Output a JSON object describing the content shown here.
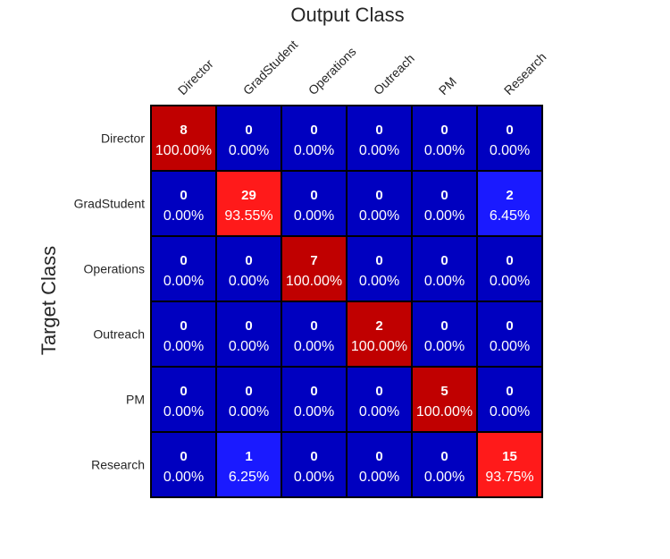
{
  "chart_data": {
    "type": "heatmap",
    "title": "Output Class",
    "xlabel": "",
    "ylabel": "Target Class",
    "x_categories": [
      "Director",
      "GradStudent",
      "Operations",
      "Outreach",
      "PM",
      "Research"
    ],
    "y_categories": [
      "Director",
      "GradStudent",
      "Operations",
      "Outreach",
      "PM",
      "Research"
    ],
    "counts": [
      [
        8,
        0,
        0,
        0,
        0,
        0
      ],
      [
        0,
        29,
        0,
        0,
        0,
        2
      ],
      [
        0,
        0,
        7,
        0,
        0,
        0
      ],
      [
        0,
        0,
        0,
        2,
        0,
        0
      ],
      [
        0,
        0,
        0,
        0,
        5,
        0
      ],
      [
        0,
        1,
        0,
        0,
        0,
        15
      ]
    ],
    "percentages": [
      [
        "100.00%",
        "0.00%",
        "0.00%",
        "0.00%",
        "0.00%",
        "0.00%"
      ],
      [
        "0.00%",
        "93.55%",
        "0.00%",
        "0.00%",
        "0.00%",
        "6.45%"
      ],
      [
        "0.00%",
        "0.00%",
        "100.00%",
        "0.00%",
        "0.00%",
        "0.00%"
      ],
      [
        "0.00%",
        "0.00%",
        "0.00%",
        "100.00%",
        "0.00%",
        "0.00%"
      ],
      [
        "0.00%",
        "0.00%",
        "0.00%",
        "0.00%",
        "100.00%",
        "0.00%"
      ],
      [
        "0.00%",
        "6.25%",
        "0.00%",
        "0.00%",
        "0.00%",
        "93.75%"
      ]
    ],
    "colors": {
      "correct_full": "#c00000",
      "correct_high": "#ff1a1a",
      "off_diagonal_zero": "#0000c0",
      "off_diagonal_nonzero": "#1a1aff",
      "grid": "#000000"
    },
    "grid": true
  }
}
